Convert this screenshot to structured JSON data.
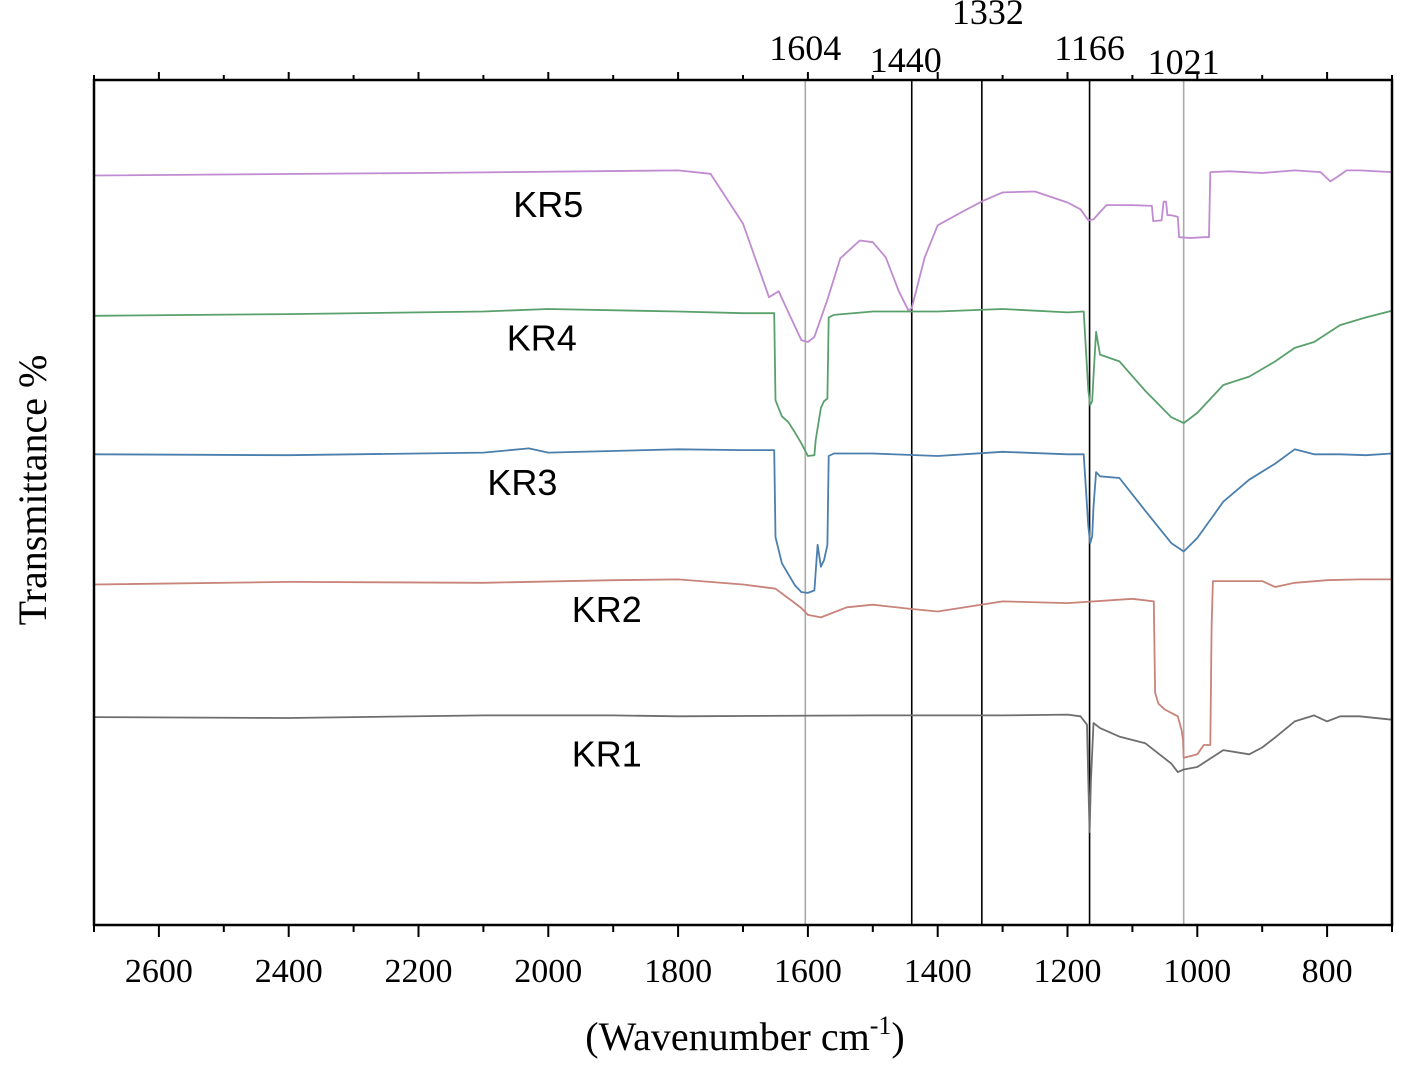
{
  "chart_data": {
    "type": "line",
    "title": "",
    "xlabel": "(Wavenumber cm",
    "xlabel_sup": "-1",
    "xlabel_close": ")",
    "ylabel": "Transmittance %",
    "xlim": [
      2700,
      700
    ],
    "x_reversed": true,
    "xticks": [
      2600,
      2400,
      2200,
      2000,
      1800,
      1600,
      1400,
      1200,
      1000,
      800
    ],
    "tick_labels": [
      "2600",
      "2400",
      "2200",
      "2000",
      "1800",
      "1600",
      "1400",
      "1200",
      "1000",
      "800"
    ],
    "ylim": [
      0,
      100
    ],
    "reference_lines": [
      {
        "x": 1604,
        "label": "1604",
        "color": "#aaaaaa"
      },
      {
        "x": 1440,
        "label": "1440",
        "color": "#000000"
      },
      {
        "x": 1332,
        "label": "1332",
        "color": "#000000"
      },
      {
        "x": 1166,
        "label": "1166",
        "color": "#000000"
      },
      {
        "x": 1021,
        "label": "1021",
        "color": "#aaaaaa"
      }
    ],
    "series": [
      {
        "name": "KR5",
        "color": "#c08bd0",
        "label_x": 2000,
        "label_y": 85.2,
        "x": [
          2700,
          2200,
          1800,
          1750,
          1700,
          1660,
          1645,
          1630,
          1610,
          1600,
          1590,
          1570,
          1550,
          1520,
          1500,
          1480,
          1460,
          1445,
          1440,
          1420,
          1400,
          1360,
          1330,
          1300,
          1250,
          1200,
          1180,
          1168,
          1160,
          1140,
          1100,
          1070,
          1068,
          1055,
          1052,
          1048,
          1046,
          1040,
          1030,
          1028,
          1010,
          990,
          982,
          980,
          950,
          900,
          850,
          810,
          795,
          785,
          770,
          750,
          700
        ],
        "y": [
          88.7,
          89.0,
          89.3,
          88.9,
          83.0,
          74.3,
          75.0,
          72.5,
          69.2,
          69.0,
          69.6,
          74.0,
          78.9,
          81.0,
          80.8,
          79.0,
          75.0,
          72.7,
          73.0,
          79.0,
          82.8,
          84.5,
          85.7,
          86.7,
          86.8,
          85.5,
          84.7,
          83.4,
          83.5,
          85.2,
          85.2,
          85.1,
          83.3,
          83.4,
          85.6,
          85.6,
          84.0,
          84.0,
          83.8,
          81.4,
          81.3,
          81.4,
          81.4,
          89.1,
          89.2,
          89.0,
          89.3,
          89.1,
          88.0,
          88.5,
          89.3,
          89.3,
          89.1
        ]
      },
      {
        "name": "KR4",
        "color": "#5aa06c",
        "label_x": 2010,
        "label_y": 69.4,
        "x": [
          2700,
          2400,
          2100,
          2000,
          1800,
          1700,
          1652,
          1650,
          1640,
          1630,
          1620,
          1610,
          1600,
          1590,
          1588,
          1580,
          1575,
          1570,
          1568,
          1560,
          1500,
          1400,
          1300,
          1200,
          1175,
          1168,
          1165,
          1162,
          1160,
          1156,
          1150,
          1120,
          1080,
          1040,
          1021,
          1000,
          960,
          920,
          880,
          850,
          820,
          780,
          740,
          700
        ],
        "y": [
          72.1,
          72.3,
          72.6,
          72.9,
          72.6,
          72.4,
          72.4,
          62.1,
          60.2,
          59.5,
          58.3,
          57.0,
          55.5,
          55.6,
          57.4,
          61.2,
          62.0,
          62.3,
          71.9,
          72.2,
          72.6,
          72.6,
          72.9,
          72.5,
          72.6,
          63.3,
          61.5,
          62.0,
          65.0,
          70.2,
          67.5,
          66.7,
          63.2,
          60.1,
          59.4,
          60.6,
          63.9,
          64.9,
          66.7,
          68.3,
          69.0,
          71.0,
          71.9,
          72.7
        ]
      },
      {
        "name": "KR3",
        "color": "#4b7fad",
        "label_x": 2040,
        "label_y": 52.3,
        "x": [
          2700,
          2400,
          2100,
          2030,
          2000,
          1800,
          1700,
          1652,
          1650,
          1640,
          1630,
          1620,
          1610,
          1600,
          1590,
          1588,
          1585,
          1580,
          1575,
          1570,
          1568,
          1560,
          1500,
          1400,
          1300,
          1200,
          1175,
          1168,
          1165,
          1162,
          1160,
          1156,
          1150,
          1120,
          1080,
          1040,
          1021,
          1000,
          960,
          920,
          880,
          850,
          820,
          780,
          740,
          700
        ],
        "y": [
          55.7,
          55.6,
          55.9,
          56.4,
          55.9,
          56.3,
          56.2,
          56.2,
          45.9,
          42.8,
          41.5,
          40.2,
          39.4,
          39.3,
          39.6,
          41.8,
          45.0,
          42.4,
          43.2,
          45.0,
          55.5,
          55.8,
          55.8,
          55.5,
          56.0,
          55.7,
          55.7,
          47.2,
          45.2,
          46.0,
          49.5,
          53.6,
          53.1,
          52.9,
          49.0,
          45.2,
          44.2,
          45.8,
          50.1,
          52.7,
          54.6,
          56.3,
          55.7,
          55.7,
          55.6,
          55.8
        ]
      },
      {
        "name": "KR2",
        "color": "#c8837a",
        "label_x": 1910,
        "label_y": 37.3,
        "x": [
          2700,
          2400,
          2100,
          1900,
          1800,
          1700,
          1650,
          1620,
          1610,
          1600,
          1580,
          1540,
          1500,
          1440,
          1400,
          1300,
          1200,
          1100,
          1067,
          1065,
          1060,
          1050,
          1040,
          1030,
          1024,
          1022,
          1021,
          1010,
          1000,
          990,
          980,
          978,
          976,
          950,
          900,
          880,
          850,
          800,
          750,
          700
        ],
        "y": [
          40.3,
          40.6,
          40.5,
          40.8,
          40.9,
          40.3,
          39.8,
          38.1,
          37.5,
          36.7,
          36.4,
          37.6,
          37.9,
          37.4,
          37.1,
          38.3,
          38.1,
          38.6,
          38.3,
          27.5,
          26.2,
          25.5,
          25.1,
          24.7,
          23.0,
          21.9,
          19.8,
          20.0,
          20.2,
          21.3,
          21.3,
          35.3,
          40.7,
          40.7,
          40.7,
          40.0,
          40.5,
          40.8,
          40.9,
          40.9
        ]
      },
      {
        "name": "KR1",
        "color": "#6e6e6e",
        "label_x": 1910,
        "label_y": 20.2,
        "x": [
          2700,
          2400,
          2100,
          1900,
          1800,
          1500,
          1300,
          1200,
          1180,
          1170,
          1168,
          1166,
          1164,
          1160,
          1150,
          1120,
          1080,
          1040,
          1030,
          1021,
          1000,
          960,
          920,
          900,
          880,
          850,
          820,
          800,
          780,
          750,
          700
        ],
        "y": [
          24.6,
          24.5,
          24.8,
          24.8,
          24.7,
          24.8,
          24.8,
          24.9,
          24.7,
          23.7,
          17.0,
          11.0,
          17.0,
          23.9,
          23.3,
          22.3,
          21.5,
          19.1,
          18.1,
          18.4,
          18.7,
          20.7,
          20.2,
          21.0,
          22.2,
          24.1,
          24.8,
          24.1,
          24.7,
          24.7,
          24.3
        ]
      }
    ]
  }
}
